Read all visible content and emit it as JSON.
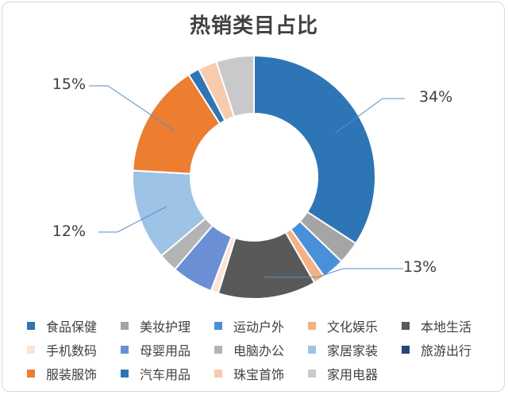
{
  "chart_data": {
    "type": "pie",
    "variant": "donut",
    "title": "热销类目占比",
    "categories": [
      "食品保健",
      "美妆护理",
      "运动户外",
      "文化娱乐",
      "本地生活",
      "手机数码",
      "母婴用品",
      "电脑办公",
      "家居家装",
      "旅游出行",
      "服装服饰",
      "汽车用品",
      "珠宝首饰",
      "家用电器"
    ],
    "values": [
      34,
      3,
      3,
      1.5,
      13,
      1,
      5.5,
      2.5,
      12,
      0.01,
      15,
      1.5,
      2.5,
      5
    ],
    "colors": [
      "#2e75b6",
      "#a5a5a5",
      "#4a90d9",
      "#f4b183",
      "#595959",
      "#fbe5d6",
      "#6a8fd4",
      "#b4b4b4",
      "#9dc3e6",
      "#264478",
      "#ed7d31",
      "#2e75b6",
      "#f8cbad",
      "#c9c9c9"
    ],
    "data_labels": [
      {
        "category": "食品保健",
        "text": "34%"
      },
      {
        "category": "本地生活",
        "text": "13%"
      },
      {
        "category": "家居家装",
        "text": "12%"
      },
      {
        "category": "服装服饰",
        "text": "15%"
      }
    ],
    "legend_position": "bottom"
  }
}
